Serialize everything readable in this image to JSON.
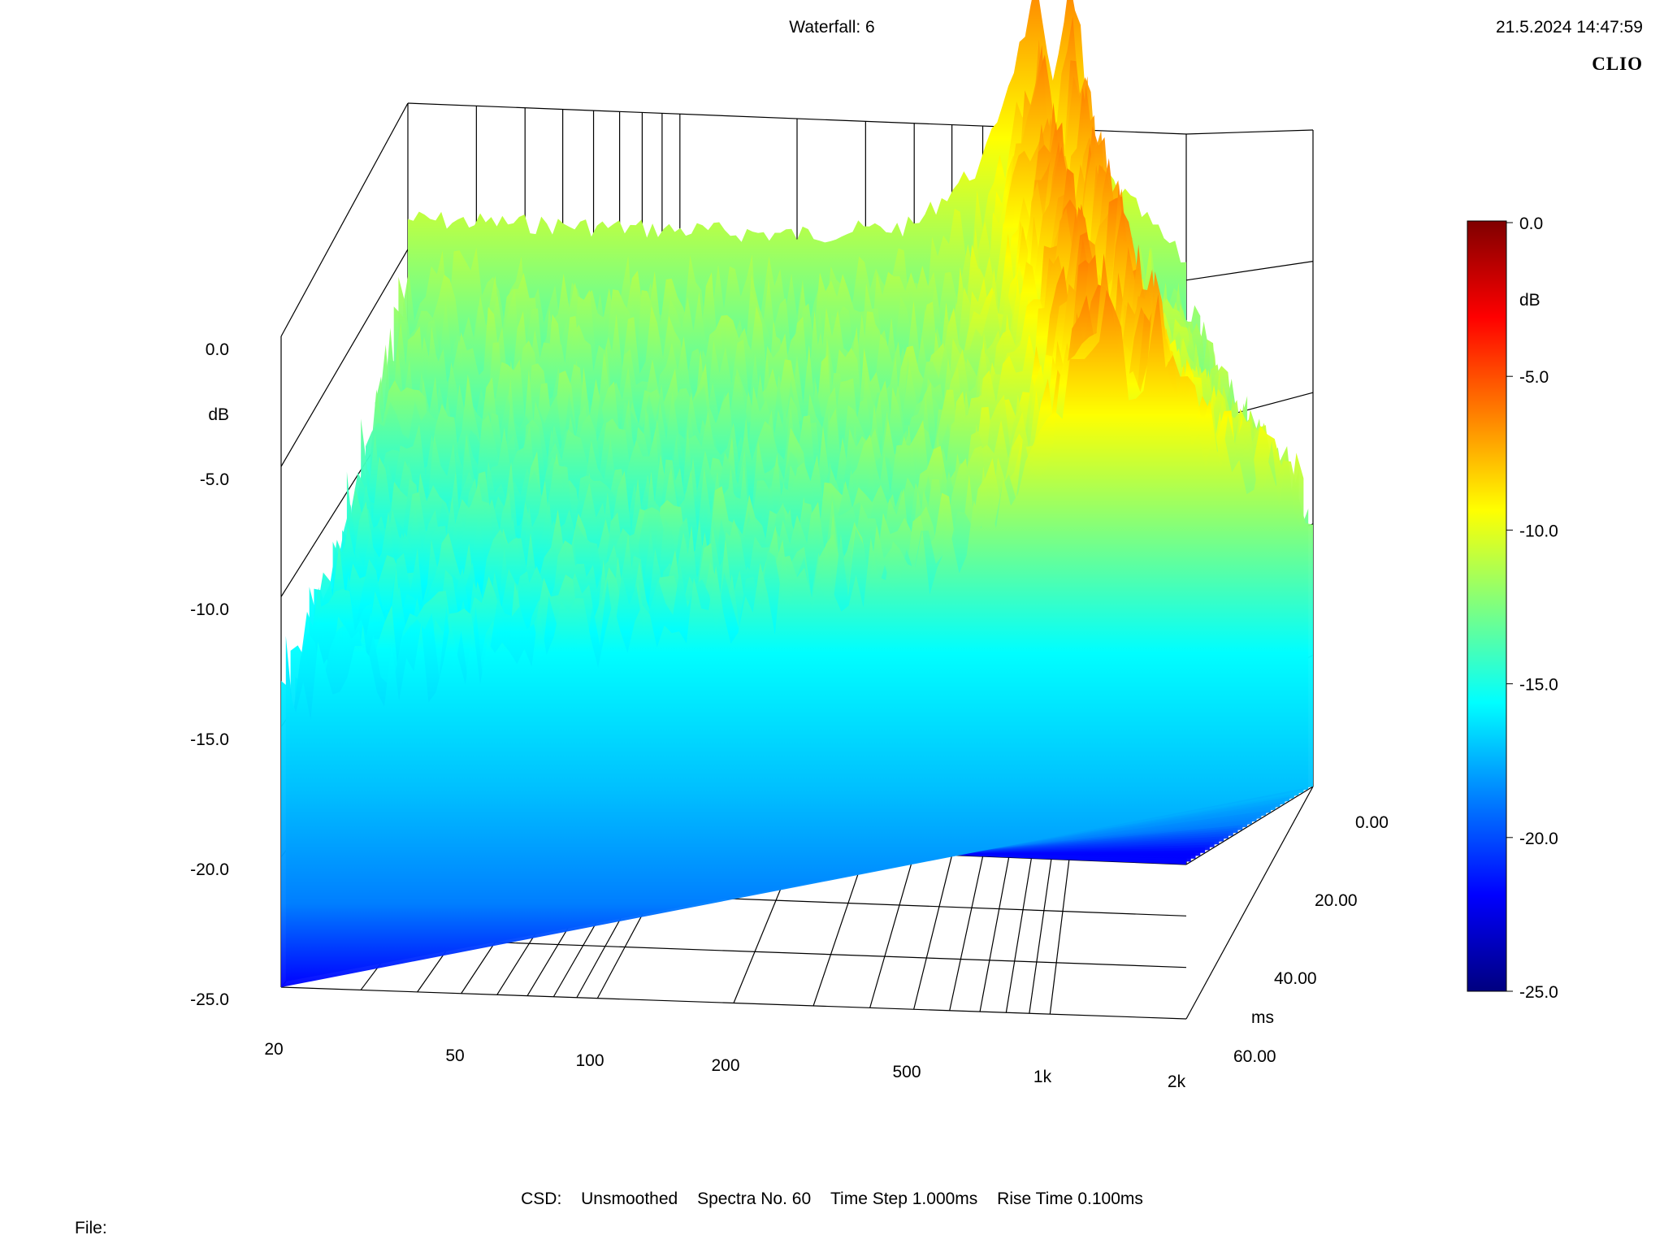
{
  "header": {
    "title": "Waterfall: 6",
    "datetime": "21.5.2024 14:47:59",
    "brand": "CLIO"
  },
  "footer": {
    "csd_label": "CSD:",
    "smoothing": "Unsmoothed",
    "spectra": "Spectra No. 60",
    "time_step": "Time Step 1.000ms",
    "rise_time": "Rise Time 0.100ms",
    "file_label": "File:"
  },
  "colors": {
    "colormap": [
      "#00007f",
      "#0000ff",
      "#007fff",
      "#00ffff",
      "#7fff7f",
      "#ffff00",
      "#ff7f00",
      "#ff0000",
      "#7f0000"
    ],
    "axis": "#000000"
  },
  "chart_data": {
    "type": "waterfall",
    "z_axis": {
      "unit": "dB",
      "ticks": [
        "0.0",
        "-5.0",
        "-10.0",
        "-15.0",
        "-20.0",
        "-25.0"
      ],
      "range": [
        -25,
        0
      ]
    },
    "x_axis": {
      "scale": "log",
      "ticks": [
        "20",
        "50",
        "100",
        "200",
        "500",
        "1k",
        "2k"
      ],
      "range": [
        20,
        2000
      ]
    },
    "y_axis": {
      "unit": "ms",
      "ticks": [
        "0.00",
        "20.00",
        "40.00",
        "60.00"
      ],
      "range": [
        0,
        60
      ]
    },
    "colorbar": {
      "unit": "dB",
      "ticks": [
        "0.0",
        "-5.0",
        "-10.0",
        "-15.0",
        "-20.0",
        "-25.0"
      ],
      "range": [
        -25,
        0
      ]
    },
    "approx_first_spectrum_db": {
      "freq_hz": [
        20,
        50,
        100,
        200,
        400,
        500,
        600,
        800,
        900,
        1000,
        1200,
        2000
      ],
      "level_db": [
        -1,
        -1,
        -1,
        -1,
        -0.5,
        1,
        2,
        8,
        3,
        7,
        2,
        -1.5
      ]
    }
  }
}
